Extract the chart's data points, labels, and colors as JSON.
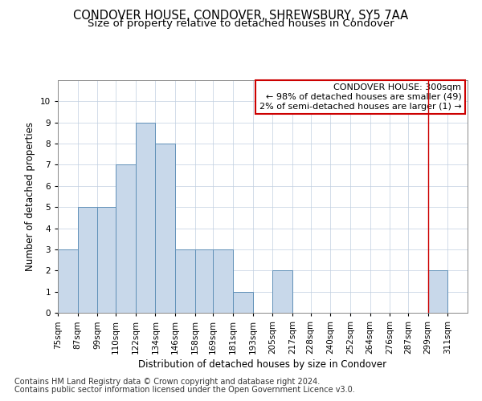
{
  "title": "CONDOVER HOUSE, CONDOVER, SHREWSBURY, SY5 7AA",
  "subtitle": "Size of property relative to detached houses in Condover",
  "xlabel": "Distribution of detached houses by size in Condover",
  "ylabel": "Number of detached properties",
  "footnote1": "Contains HM Land Registry data © Crown copyright and database right 2024.",
  "footnote2": "Contains public sector information licensed under the Open Government Licence v3.0.",
  "bin_labels": [
    "75sqm",
    "87sqm",
    "99sqm",
    "110sqm",
    "122sqm",
    "134sqm",
    "146sqm",
    "158sqm",
    "169sqm",
    "181sqm",
    "193sqm",
    "205sqm",
    "217sqm",
    "228sqm",
    "240sqm",
    "252sqm",
    "264sqm",
    "276sqm",
    "287sqm",
    "299sqm",
    "311sqm"
  ],
  "bin_edges": [
    75,
    87,
    99,
    110,
    122,
    134,
    146,
    158,
    169,
    181,
    193,
    205,
    217,
    228,
    240,
    252,
    264,
    276,
    287,
    299,
    311,
    323
  ],
  "values": [
    3,
    5,
    5,
    7,
    9,
    8,
    3,
    3,
    3,
    1,
    0,
    2,
    0,
    0,
    0,
    0,
    0,
    0,
    0,
    2,
    0
  ],
  "bar_color": "#c8d8ea",
  "bar_edge_color": "#6090b8",
  "red_line_x": 299,
  "annotation_line1": "CONDOVER HOUSE: 300sqm",
  "annotation_line2": "← 98% of detached houses are smaller (49)",
  "annotation_line3": "2% of semi-detached houses are larger (1) →",
  "annotation_box_color": "#cc0000",
  "ylim": [
    0,
    11
  ],
  "yticks": [
    0,
    1,
    2,
    3,
    4,
    5,
    6,
    7,
    8,
    9,
    10,
    11
  ],
  "grid_color": "#c0cfe0",
  "title_fontsize": 10.5,
  "subtitle_fontsize": 9.5,
  "axis_label_fontsize": 8.5,
  "tick_fontsize": 7.5,
  "annotation_fontsize": 8,
  "footnote_fontsize": 7
}
